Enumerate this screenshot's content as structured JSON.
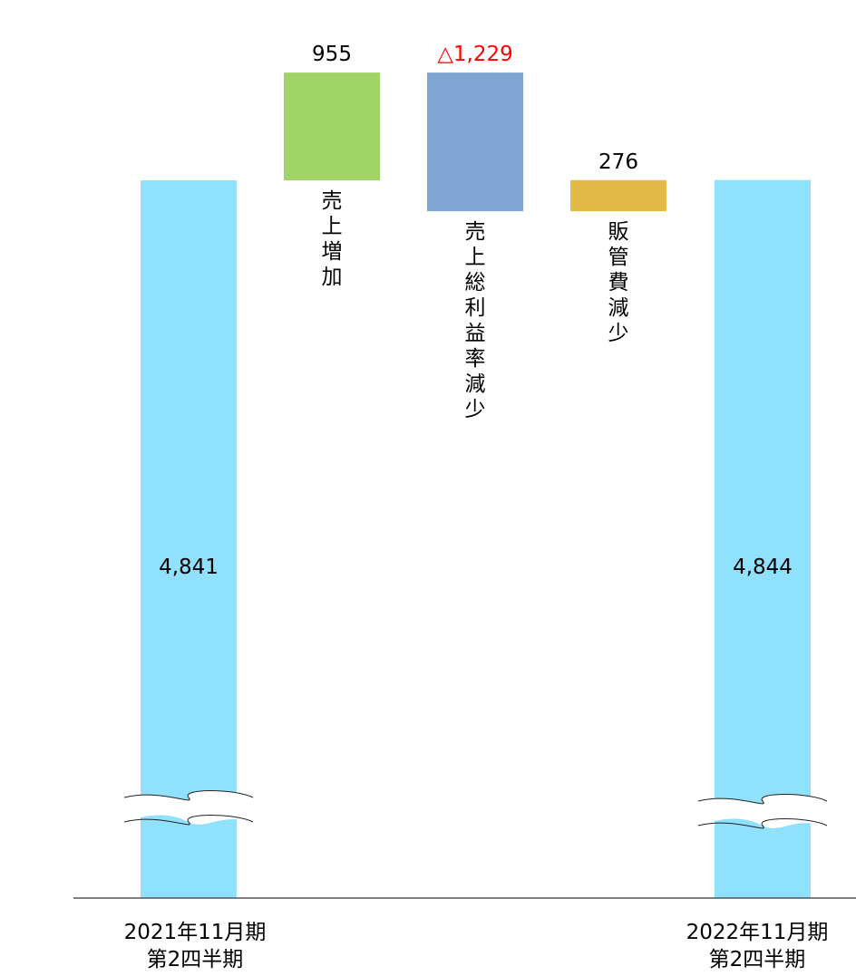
{
  "chart_data": {
    "type": "bar",
    "subtype": "waterfall",
    "axis_break": true,
    "grid": false,
    "legend": "none",
    "bars": [
      {
        "id": "start",
        "label_lines": [
          "2021年11月期",
          "第2四半期"
        ],
        "label_orientation": "horizontal",
        "kind": "total",
        "value": 4841,
        "value_label": "4,841",
        "value_label_color": "#000000",
        "color": "#8FE1FD"
      },
      {
        "id": "sales",
        "label_lines": [
          "売上増加"
        ],
        "label_orientation": "vertical",
        "kind": "delta",
        "value": 955,
        "value_label": "955",
        "value_label_color": "#000000",
        "color": "#A0D468"
      },
      {
        "id": "margin",
        "label_lines": [
          "売上総利益率減少"
        ],
        "label_orientation": "vertical",
        "kind": "delta",
        "value": -1229,
        "value_label": "△1,229",
        "value_label_color": "#FF0000",
        "color": "#81A5D3"
      },
      {
        "id": "sga",
        "label_lines": [
          "販管費減少"
        ],
        "label_orientation": "vertical",
        "kind": "delta",
        "value": 276,
        "value_label": "276",
        "value_label_color": "#000000",
        "color": "#E2BA48"
      },
      {
        "id": "end",
        "label_lines": [
          "2022年11月期",
          "第2四半期"
        ],
        "label_orientation": "horizontal",
        "kind": "total",
        "value": 4844,
        "value_label": "4,844",
        "value_label_color": "#000000",
        "color": "#8FE1FD"
      }
    ]
  }
}
